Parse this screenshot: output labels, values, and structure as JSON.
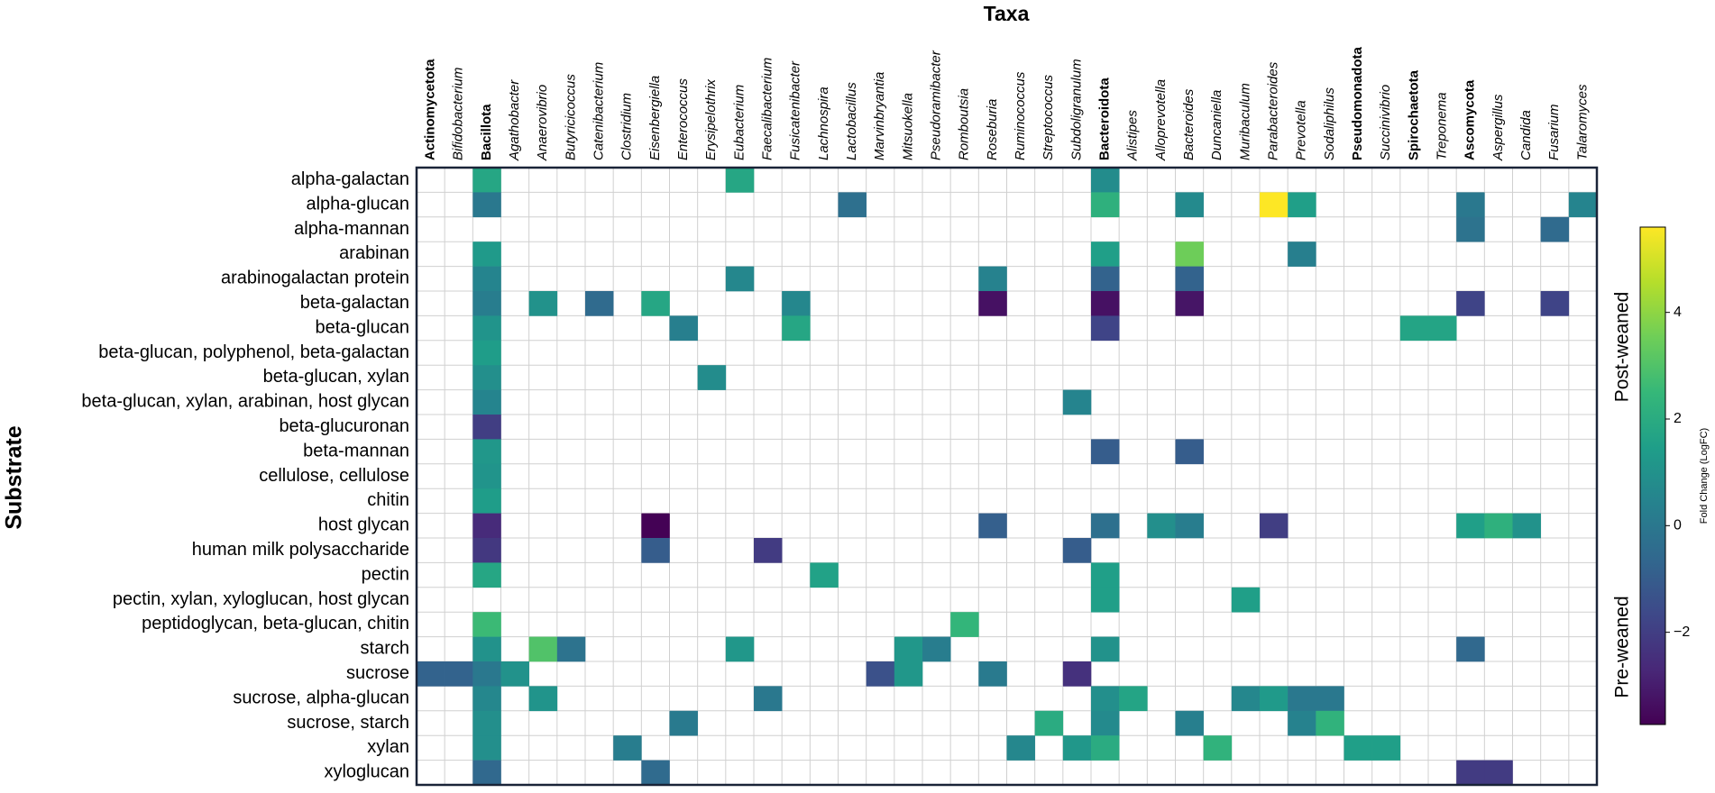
{
  "chart_data": {
    "type": "heatmap",
    "xlabel": "Taxa",
    "ylabel": "Substrate",
    "colorbar_label": "Fold Change (LogFC)",
    "annotations": [
      "Post-weaned",
      "Pre-weaned"
    ],
    "colormap": "viridis",
    "clim": [
      -3.73,
      5.6
    ],
    "cticks": [
      {
        "value": -2,
        "label": "−2"
      },
      0,
      2,
      4
    ],
    "x_categories": [
      "Actinomycetota",
      "Bifidobacterium",
      "Bacillota",
      "Agathobacter",
      "Anaerovibrio",
      "Butyricicoccus",
      "Catenibacterium",
      "Clostridium",
      "Eisenbergiella",
      "Enterococcus",
      "Erysipelothrix",
      "Eubacterium",
      "Faecalibacterium",
      "Fusicatenibacter",
      "Lachnospira",
      "Lactobacillus",
      "Marvinbryantia",
      "Mitsuokella",
      "Pseudoramibacter",
      "Romboutsia",
      "Roseburia",
      "Ruminococcus",
      "Streptococcus",
      "Subdoligranulum",
      "Bacteroidota",
      "Alistipes",
      "Alloprevotella",
      "Bacteroides",
      "Duncaniella",
      "Muribaculum",
      "Parabacteroides",
      "Prevotella",
      "Sodaliphilus",
      "Pseudomonadota",
      "Succinivibrio",
      "Spirochaetota",
      "Treponema",
      "Ascomycota",
      "Aspergillus",
      "Candida",
      "Fusarium",
      "Talaromyces"
    ],
    "x_bold": [
      true,
      false,
      true,
      false,
      false,
      false,
      false,
      false,
      false,
      false,
      false,
      false,
      false,
      false,
      false,
      false,
      false,
      false,
      false,
      false,
      false,
      false,
      false,
      false,
      true,
      false,
      false,
      false,
      false,
      false,
      false,
      false,
      false,
      true,
      false,
      true,
      false,
      true,
      false,
      false,
      false,
      false
    ],
    "y_categories": [
      "alpha-galactan",
      "alpha-glucan",
      "alpha-mannan",
      "arabinan",
      "arabinogalactan protein",
      "beta-galactan",
      "beta-glucan",
      "beta-glucan, polyphenol, beta-galactan",
      "beta-glucan, xylan",
      "beta-glucan, xylan, arabinan, host glycan",
      "beta-glucuronan",
      "beta-mannan",
      "cellulose, cellulose",
      "chitin",
      "host glycan",
      "human milk polysaccharide",
      "pectin",
      "pectin, xylan, xyloglucan, host glycan",
      "peptidoglycan, beta-glucan, chitin",
      "starch",
      "sucrose",
      "sucrose, alpha-glucan",
      "sucrose, starch",
      "xylan",
      "xyloglucan"
    ],
    "values": [
      [
        null,
        null,
        1.8,
        null,
        null,
        null,
        null,
        null,
        null,
        null,
        null,
        1.8,
        null,
        null,
        null,
        null,
        null,
        null,
        null,
        null,
        null,
        null,
        null,
        null,
        0.8,
        null,
        null,
        null,
        null,
        null,
        null,
        null,
        null,
        null,
        null,
        null,
        null,
        null,
        null,
        null,
        null,
        null
      ],
      [
        null,
        null,
        0,
        null,
        null,
        null,
        null,
        null,
        null,
        null,
        null,
        null,
        null,
        null,
        null,
        -0.3,
        null,
        null,
        null,
        null,
        null,
        null,
        null,
        null,
        2.2,
        null,
        null,
        0.7,
        null,
        null,
        5.6,
        1.5,
        null,
        null,
        null,
        null,
        null,
        0,
        null,
        null,
        null,
        0.5
      ],
      [
        null,
        null,
        null,
        null,
        null,
        null,
        null,
        null,
        null,
        null,
        null,
        null,
        null,
        null,
        null,
        null,
        null,
        null,
        null,
        null,
        null,
        null,
        null,
        null,
        null,
        null,
        null,
        null,
        null,
        null,
        null,
        null,
        null,
        null,
        null,
        null,
        null,
        -0.2,
        null,
        null,
        -0.5,
        null
      ],
      [
        null,
        null,
        1.3,
        null,
        null,
        null,
        null,
        null,
        null,
        null,
        null,
        null,
        null,
        null,
        null,
        null,
        null,
        null,
        null,
        null,
        null,
        null,
        null,
        null,
        1.5,
        null,
        null,
        3.5,
        null,
        null,
        null,
        0.3,
        null,
        null,
        null,
        null,
        null,
        null,
        null,
        null,
        null,
        null
      ],
      [
        null,
        null,
        0.5,
        null,
        null,
        null,
        null,
        null,
        null,
        null,
        null,
        0.6,
        null,
        null,
        null,
        null,
        null,
        null,
        null,
        null,
        0.4,
        null,
        null,
        null,
        -0.8,
        null,
        null,
        -0.8,
        null,
        null,
        null,
        null,
        null,
        null,
        null,
        null,
        null,
        null,
        null,
        null,
        null,
        null
      ],
      [
        null,
        null,
        0.2,
        null,
        1.0,
        null,
        -0.5,
        null,
        1.8,
        null,
        null,
        null,
        null,
        0.6,
        null,
        null,
        null,
        null,
        null,
        null,
        -3.3,
        null,
        null,
        null,
        -3.3,
        null,
        null,
        -3.2,
        null,
        null,
        null,
        null,
        null,
        null,
        null,
        null,
        null,
        -1.8,
        null,
        null,
        -1.8,
        null
      ],
      [
        null,
        null,
        1.1,
        null,
        null,
        null,
        null,
        null,
        null,
        0.3,
        null,
        null,
        null,
        1.8,
        null,
        null,
        null,
        null,
        null,
        null,
        null,
        null,
        null,
        null,
        -1.8,
        null,
        null,
        null,
        null,
        null,
        null,
        null,
        null,
        null,
        null,
        1.7,
        1.7,
        null,
        null,
        null,
        null,
        null
      ],
      [
        null,
        null,
        1.4,
        null,
        null,
        null,
        null,
        null,
        null,
        null,
        null,
        null,
        null,
        null,
        null,
        null,
        null,
        null,
        null,
        null,
        null,
        null,
        null,
        null,
        null,
        null,
        null,
        null,
        null,
        null,
        null,
        null,
        null,
        null,
        null,
        null,
        null,
        null,
        null,
        null,
        null,
        null
      ],
      [
        null,
        null,
        0.9,
        null,
        null,
        null,
        null,
        null,
        null,
        null,
        0.8,
        null,
        null,
        null,
        null,
        null,
        null,
        null,
        null,
        null,
        null,
        null,
        null,
        null,
        null,
        null,
        null,
        null,
        null,
        null,
        null,
        null,
        null,
        null,
        null,
        null,
        null,
        null,
        null,
        null,
        null,
        null
      ],
      [
        null,
        null,
        0.5,
        null,
        null,
        null,
        null,
        null,
        null,
        null,
        null,
        null,
        null,
        null,
        null,
        null,
        null,
        null,
        null,
        null,
        null,
        null,
        null,
        0.5,
        null,
        null,
        null,
        null,
        null,
        null,
        null,
        null,
        null,
        null,
        null,
        null,
        null,
        null,
        null,
        null,
        null,
        null
      ],
      [
        null,
        null,
        -2.0,
        null,
        null,
        null,
        null,
        null,
        null,
        null,
        null,
        null,
        null,
        null,
        null,
        null,
        null,
        null,
        null,
        null,
        null,
        null,
        null,
        null,
        null,
        null,
        null,
        null,
        null,
        null,
        null,
        null,
        null,
        null,
        null,
        null,
        null,
        null,
        null,
        null,
        null,
        null
      ],
      [
        null,
        null,
        1.2,
        null,
        null,
        null,
        null,
        null,
        null,
        null,
        null,
        null,
        null,
        null,
        null,
        null,
        null,
        null,
        null,
        null,
        null,
        null,
        null,
        null,
        -1.0,
        null,
        null,
        -1.0,
        null,
        null,
        null,
        null,
        null,
        null,
        null,
        null,
        null,
        null,
        null,
        null,
        null,
        null
      ],
      [
        null,
        null,
        1.1,
        null,
        null,
        null,
        null,
        null,
        null,
        null,
        null,
        null,
        null,
        null,
        null,
        null,
        null,
        null,
        null,
        null,
        null,
        null,
        null,
        null,
        null,
        null,
        null,
        null,
        null,
        null,
        null,
        null,
        null,
        null,
        null,
        null,
        null,
        null,
        null,
        null,
        null,
        null
      ],
      [
        null,
        null,
        1.4,
        null,
        null,
        null,
        null,
        null,
        null,
        null,
        null,
        null,
        null,
        null,
        null,
        null,
        null,
        null,
        null,
        null,
        null,
        null,
        null,
        null,
        null,
        null,
        null,
        null,
        null,
        null,
        null,
        null,
        null,
        null,
        null,
        null,
        null,
        null,
        null,
        null,
        null,
        null
      ],
      [
        null,
        null,
        -2.6,
        null,
        null,
        null,
        null,
        null,
        -3.7,
        null,
        null,
        null,
        null,
        null,
        null,
        null,
        null,
        null,
        null,
        null,
        -0.9,
        null,
        null,
        null,
        -0.3,
        null,
        0.9,
        0.2,
        null,
        null,
        -2.0,
        null,
        null,
        null,
        null,
        null,
        null,
        1.5,
        2.2,
        1.0,
        null,
        null
      ],
      [
        null,
        null,
        -2.2,
        null,
        null,
        null,
        null,
        null,
        -1.0,
        null,
        null,
        null,
        -2.1,
        null,
        null,
        null,
        null,
        null,
        null,
        null,
        null,
        null,
        null,
        -1.0,
        null,
        null,
        null,
        null,
        null,
        null,
        null,
        null,
        null,
        null,
        null,
        null,
        null,
        null,
        null,
        null,
        null,
        null
      ],
      [
        null,
        null,
        1.8,
        null,
        null,
        null,
        null,
        null,
        null,
        null,
        null,
        null,
        null,
        null,
        1.6,
        null,
        null,
        null,
        null,
        null,
        null,
        null,
        null,
        null,
        1.5,
        null,
        null,
        null,
        null,
        null,
        null,
        null,
        null,
        null,
        null,
        null,
        null,
        null,
        null,
        null,
        null,
        null
      ],
      [
        null,
        null,
        null,
        null,
        null,
        null,
        null,
        null,
        null,
        null,
        null,
        null,
        null,
        null,
        null,
        null,
        null,
        null,
        null,
        null,
        null,
        null,
        null,
        null,
        1.5,
        null,
        null,
        null,
        null,
        1.5,
        null,
        null,
        null,
        null,
        null,
        null,
        null,
        null,
        null,
        null,
        null,
        null
      ],
      [
        null,
        null,
        2.6,
        null,
        null,
        null,
        null,
        null,
        null,
        null,
        null,
        null,
        null,
        null,
        null,
        null,
        null,
        null,
        null,
        2.4,
        null,
        null,
        null,
        null,
        null,
        null,
        null,
        null,
        null,
        null,
        null,
        null,
        null,
        null,
        null,
        null,
        null,
        null,
        null,
        null,
        null,
        null
      ],
      [
        null,
        null,
        1.0,
        null,
        3.0,
        -0.2,
        null,
        null,
        null,
        null,
        null,
        1.2,
        null,
        null,
        null,
        null,
        null,
        1.2,
        0.2,
        null,
        null,
        null,
        null,
        null,
        1.0,
        null,
        null,
        null,
        null,
        null,
        null,
        null,
        null,
        null,
        null,
        null,
        null,
        -0.6,
        null,
        null,
        null,
        null
      ],
      [
        -0.8,
        -0.8,
        0,
        1.0,
        null,
        null,
        null,
        null,
        null,
        null,
        null,
        null,
        null,
        null,
        null,
        null,
        -1.4,
        1.2,
        null,
        null,
        0.1,
        null,
        null,
        -2.4,
        null,
        null,
        null,
        null,
        null,
        null,
        null,
        null,
        null,
        null,
        null,
        null,
        null,
        null,
        null,
        null,
        null,
        null
      ],
      [
        null,
        null,
        0.6,
        null,
        1.1,
        null,
        null,
        null,
        null,
        null,
        null,
        null,
        0,
        null,
        null,
        null,
        null,
        null,
        null,
        null,
        null,
        null,
        null,
        null,
        0.9,
        1.7,
        null,
        null,
        null,
        0.6,
        1.3,
        0,
        0,
        null,
        null,
        null,
        null,
        null,
        null,
        null,
        null,
        null
      ],
      [
        null,
        null,
        0.9,
        null,
        null,
        null,
        null,
        null,
        null,
        0.1,
        null,
        null,
        null,
        null,
        null,
        null,
        null,
        null,
        null,
        null,
        null,
        null,
        2.0,
        null,
        0.7,
        null,
        null,
        0.3,
        null,
        null,
        null,
        0.4,
        2.3,
        null,
        null,
        null,
        null,
        null,
        null,
        null,
        null,
        null
      ],
      [
        null,
        null,
        0.9,
        null,
        null,
        null,
        null,
        0.2,
        null,
        null,
        null,
        null,
        null,
        null,
        null,
        null,
        null,
        null,
        null,
        null,
        null,
        0.6,
        null,
        1.2,
        2.0,
        null,
        null,
        null,
        2.3,
        null,
        null,
        null,
        null,
        1.5,
        1.5,
        null,
        null,
        null,
        null,
        null,
        null,
        null
      ],
      [
        null,
        null,
        -0.6,
        null,
        null,
        null,
        null,
        null,
        -0.5,
        null,
        null,
        null,
        null,
        null,
        null,
        null,
        null,
        null,
        null,
        null,
        null,
        null,
        null,
        null,
        null,
        null,
        null,
        null,
        null,
        null,
        null,
        null,
        null,
        null,
        null,
        null,
        null,
        -2.1,
        -2.1,
        null,
        null,
        null
      ]
    ]
  }
}
